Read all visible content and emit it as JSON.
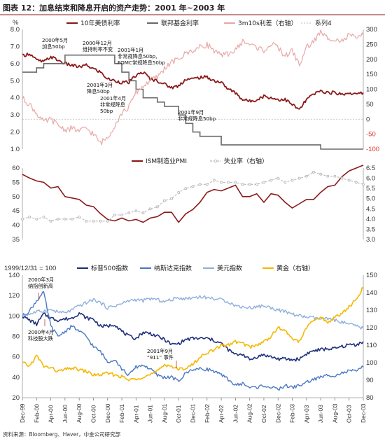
{
  "header": {
    "title": "图表 12：加息结束和降息开启的资产走势：2001 年~2003 年",
    "source": "资料来源：Bloomberg、Haver，中金公司研究部"
  },
  "colors": {
    "treasury": "#8b1a1a",
    "fedfunds": "#6b6b6b",
    "spread": "#e8a8a8",
    "pmi": "#8b1a1a",
    "unemp": "#b8b8b8",
    "sp500": "#1f2f7a",
    "nasdaq": "#4a78c4",
    "dxy": "#8fb0dc",
    "gold": "#f5b800"
  },
  "chart_data": [
    {
      "id": "rates",
      "type": "line",
      "yunit": "%",
      "ylim": [
        1.0,
        8.0
      ],
      "yticks": [
        "1.0",
        "2.0",
        "3.0",
        "4.0",
        "5.0",
        "6.0",
        "7.0",
        "8.0"
      ],
      "y2lim": [
        -100,
        300
      ],
      "y2ticks": [
        "-100",
        "-50",
        "0",
        "50",
        "100",
        "150",
        "200",
        "250",
        "300"
      ],
      "legend": [
        "10年美债利率",
        "联邦基金利率",
        "3m10s利差（右轴）",
        "系列4"
      ],
      "annotations": [
        {
          "lines": [
            "2000年5月",
            "加息50bp"
          ]
        },
        {
          "lines": [
            "2000年12月",
            "维持利率不变"
          ]
        },
        {
          "lines": [
            "2001年1月",
            "非常规降息50bp,",
            "FOMC常规降息50bp"
          ]
        },
        {
          "lines": [
            "2001年3月",
            "降息50bp"
          ]
        },
        {
          "lines": [
            "2001年4月",
            "非常规降息",
            "50bp"
          ]
        },
        {
          "lines": [
            "2001年9月",
            "非常规降息50bp"
          ]
        }
      ],
      "series": [
        {
          "name": "10年美债利率",
          "axis": "left",
          "x": [
            0,
            1,
            2,
            3,
            4,
            5,
            6,
            7,
            8,
            9,
            10,
            11,
            12,
            13,
            14,
            15,
            16,
            17,
            18,
            19,
            20,
            21,
            22,
            23,
            24,
            25,
            26,
            27,
            28,
            29,
            30,
            31,
            32,
            33,
            34,
            35,
            36,
            37,
            38,
            39,
            40,
            41,
            42,
            43,
            44,
            45,
            46,
            47,
            48
          ],
          "values": [
            6.45,
            6.6,
            6.2,
            6.1,
            6.4,
            6.2,
            6.0,
            5.9,
            5.8,
            5.9,
            5.7,
            5.5,
            5.1,
            5.0,
            4.9,
            4.9,
            5.3,
            5.5,
            5.1,
            5.0,
            4.8,
            4.6,
            4.7,
            5.1,
            5.1,
            5.2,
            5.2,
            5.0,
            4.9,
            4.5,
            4.3,
            3.9,
            3.8,
            3.9,
            4.1,
            4.0,
            3.9,
            3.9,
            3.6,
            3.3,
            3.9,
            4.2,
            4.4,
            4.3,
            4.3,
            4.2,
            4.3,
            4.2,
            4.3
          ]
        },
        {
          "name": "联邦基金利率",
          "axis": "left",
          "x": [
            0,
            2,
            3,
            5,
            6,
            12,
            13,
            14,
            15,
            16,
            17,
            19,
            20,
            21,
            22,
            23,
            24,
            25,
            26,
            27,
            28,
            42,
            48
          ],
          "values": [
            5.5,
            5.75,
            6.0,
            6.0,
            6.5,
            6.5,
            6.0,
            5.5,
            5.0,
            4.5,
            4.0,
            3.75,
            3.5,
            3.5,
            3.0,
            2.5,
            2.0,
            1.75,
            1.75,
            1.75,
            1.25,
            1.0,
            1.0
          ]
        },
        {
          "name": "3m10s利差（右轴）",
          "axis": "right",
          "x": [
            0,
            1,
            2,
            3,
            4,
            5,
            6,
            7,
            8,
            9,
            10,
            11,
            12,
            13,
            14,
            15,
            16,
            17,
            18,
            19,
            20,
            21,
            22,
            23,
            24,
            25,
            26,
            27,
            28,
            29,
            30,
            31,
            32,
            33,
            34,
            35,
            36,
            37,
            38,
            39,
            40,
            41,
            42,
            43,
            44,
            45,
            46,
            47,
            48
          ],
          "values": [
            70,
            50,
            20,
            -10,
            0,
            -20,
            -35,
            -30,
            -40,
            -30,
            -50,
            -80,
            -60,
            -20,
            20,
            40,
            90,
            110,
            130,
            140,
            170,
            190,
            200,
            220,
            230,
            240,
            250,
            230,
            210,
            220,
            230,
            260,
            250,
            240,
            230,
            250,
            240,
            210,
            230,
            180,
            240,
            260,
            290,
            270,
            270,
            260,
            280,
            270,
            280
          ]
        }
      ]
    },
    {
      "id": "macro",
      "type": "line",
      "ylim": [
        35,
        60
      ],
      "yticks": [
        "35",
        "40",
        "45",
        "50",
        "55",
        "60"
      ],
      "y2lim": [
        3.0,
        6.5
      ],
      "y2ticks": [
        "3.0",
        "3.5",
        "4.0",
        "4.5",
        "5.0",
        "5.5",
        "6.0",
        "6.5"
      ],
      "legend": [
        "ISM制造业PMI",
        "失业率（右轴）"
      ],
      "series": [
        {
          "name": "ISM制造业PMI",
          "axis": "left",
          "x": [
            0,
            1,
            2,
            3,
            4,
            5,
            6,
            7,
            8,
            9,
            10,
            11,
            12,
            13,
            14,
            15,
            16,
            17,
            18,
            19,
            20,
            21,
            22,
            23,
            24,
            25,
            26,
            27,
            28,
            29,
            30,
            31,
            32,
            33,
            34,
            35,
            36,
            37,
            38,
            39,
            40,
            41,
            42,
            43,
            44,
            45,
            46,
            47,
            48
          ],
          "values": [
            57.8,
            56.5,
            55.5,
            55.0,
            53.0,
            53.5,
            50.0,
            49.5,
            49.0,
            47.0,
            46.5,
            44.0,
            42.0,
            41.5,
            42.5,
            41.5,
            42.0,
            41.0,
            42.5,
            43.0,
            44.5,
            44.5,
            41.0,
            44.0,
            45.5,
            48.0,
            51.5,
            52.5,
            52.0,
            53.0,
            54.0,
            50.0,
            50.0,
            51.0,
            48.0,
            51.0,
            50.5,
            48.0,
            46.0,
            47.5,
            49.0,
            49.0,
            51.5,
            53.5,
            54.0,
            57.0,
            59.0,
            60.0,
            61.0
          ]
        },
        {
          "name": "失业率（右轴）",
          "axis": "right",
          "x": [
            0,
            1,
            2,
            3,
            4,
            5,
            6,
            7,
            8,
            9,
            10,
            11,
            12,
            13,
            14,
            15,
            16,
            17,
            18,
            19,
            20,
            21,
            22,
            23,
            24,
            25,
            26,
            27,
            28,
            29,
            30,
            31,
            32,
            33,
            34,
            35,
            36,
            37,
            38,
            39,
            40,
            41,
            42,
            43,
            44,
            45,
            46,
            47,
            48
          ],
          "values": [
            4.0,
            4.1,
            4.0,
            4.1,
            3.9,
            4.0,
            4.0,
            4.0,
            4.1,
            3.9,
            3.9,
            3.9,
            3.9,
            4.2,
            4.2,
            4.3,
            4.4,
            4.3,
            4.5,
            4.6,
            4.9,
            5.0,
            5.3,
            5.5,
            5.6,
            5.7,
            5.7,
            5.9,
            5.8,
            5.8,
            5.8,
            5.7,
            5.7,
            5.7,
            5.8,
            5.9,
            6.0,
            5.8,
            5.9,
            6.0,
            6.1,
            6.3,
            6.2,
            6.1,
            6.1,
            6.0,
            5.9,
            5.8,
            5.7
          ]
        }
      ]
    },
    {
      "id": "assets",
      "type": "line",
      "base_note": "1999/12/31 = 100",
      "ylim": [
        20,
        140
      ],
      "yticks": [
        "20",
        "40",
        "60",
        "80",
        "100",
        "120",
        "140"
      ],
      "y2lim": [
        80,
        150
      ],
      "y2ticks": [
        "80",
        "90",
        "100",
        "110",
        "120",
        "130",
        "140",
        "150"
      ],
      "legend": [
        "标普500指数",
        "纳斯达克指数",
        "美元指数",
        "黄金（右轴）"
      ],
      "annotations": [
        {
          "lines": [
            "2000年3月",
            "纳指创新高"
          ]
        },
        {
          "lines": [
            "2000年4月",
            "科技股大跌"
          ]
        },
        {
          "lines": [
            "2001年9月",
            "“911” 事件"
          ]
        }
      ],
      "series": [
        {
          "name": "标普500指数",
          "axis": "left",
          "x": [
            0,
            1,
            2,
            3,
            4,
            5,
            6,
            7,
            8,
            9,
            10,
            11,
            12,
            13,
            14,
            15,
            16,
            17,
            18,
            19,
            20,
            21,
            22,
            23,
            24,
            25,
            26,
            27,
            28,
            29,
            30,
            31,
            32,
            33,
            34,
            35,
            36,
            37,
            38,
            39,
            40,
            41,
            42,
            43,
            44,
            45,
            46,
            47,
            48
          ],
          "values": [
            100,
            96,
            92,
            102,
            98,
            96,
            97,
            98,
            103,
            98,
            97,
            90,
            90,
            92,
            85,
            80,
            78,
            84,
            83,
            80,
            77,
            72,
            73,
            77,
            78,
            78,
            78,
            76,
            73,
            67,
            62,
            63,
            57,
            60,
            62,
            60,
            58,
            58,
            57,
            58,
            63,
            66,
            67,
            68,
            68,
            70,
            72,
            72,
            75
          ]
        },
        {
          "name": "纳斯达克指数",
          "axis": "left",
          "x": [
            0,
            1,
            2,
            3,
            4,
            5,
            6,
            7,
            8,
            9,
            10,
            11,
            12,
            13,
            14,
            15,
            16,
            17,
            18,
            19,
            20,
            21,
            22,
            23,
            24,
            25,
            26,
            27,
            28,
            29,
            30,
            31,
            32,
            33,
            34,
            35,
            36,
            37,
            38,
            39,
            40,
            41,
            42,
            43,
            44,
            45,
            46,
            47,
            48
          ],
          "values": [
            100,
            105,
            115,
            123,
            90,
            80,
            85,
            90,
            85,
            80,
            70,
            65,
            55,
            58,
            48,
            42,
            50,
            52,
            48,
            42,
            40,
            40,
            36,
            44,
            48,
            48,
            48,
            46,
            42,
            38,
            32,
            34,
            30,
            30,
            32,
            30,
            28,
            32,
            30,
            32,
            35,
            38,
            40,
            42,
            42,
            44,
            46,
            46,
            50
          ]
        },
        {
          "name": "美元指数",
          "axis": "left",
          "x": [
            0,
            1,
            2,
            3,
            4,
            5,
            6,
            7,
            8,
            9,
            10,
            11,
            12,
            13,
            14,
            15,
            16,
            17,
            18,
            19,
            20,
            21,
            22,
            23,
            24,
            25,
            26,
            27,
            28,
            29,
            30,
            31,
            32,
            33,
            34,
            35,
            36,
            37,
            38,
            39,
            40,
            41,
            42,
            43,
            44,
            45,
            46,
            47,
            48
          ],
          "values": [
            100,
            102,
            104,
            105,
            106,
            104,
            103,
            106,
            110,
            113,
            116,
            113,
            108,
            110,
            112,
            115,
            116,
            115,
            117,
            116,
            114,
            116,
            118,
            117,
            118,
            119,
            118,
            117,
            116,
            114,
            110,
            109,
            108,
            109,
            110,
            108,
            106,
            104,
            102,
            100,
            99,
            98,
            97,
            97,
            96,
            94,
            92,
            90,
            88
          ]
        },
        {
          "name": "黄金（右轴）",
          "axis": "right",
          "x": [
            0,
            1,
            2,
            3,
            4,
            5,
            6,
            7,
            8,
            9,
            10,
            11,
            12,
            13,
            14,
            15,
            16,
            17,
            18,
            19,
            20,
            21,
            22,
            23,
            24,
            25,
            26,
            27,
            28,
            29,
            30,
            31,
            32,
            33,
            34,
            35,
            36,
            37,
            38,
            39,
            40,
            41,
            42,
            43,
            44,
            45,
            46,
            47,
            48
          ],
          "values": [
            100,
            98,
            104,
            98,
            97,
            95,
            96,
            97,
            96,
            95,
            93,
            93,
            94,
            93,
            92,
            90,
            91,
            92,
            93,
            95,
            99,
            98,
            96,
            97,
            99,
            103,
            106,
            107,
            110,
            110,
            112,
            111,
            109,
            110,
            112,
            115,
            120,
            118,
            114,
            112,
            120,
            124,
            126,
            123,
            126,
            128,
            132,
            136,
            143
          ]
        }
      ]
    }
  ],
  "xaxis": {
    "ticks": [
      "Dec-99",
      "Feb-00",
      "Apr-00",
      "Jun-00",
      "Aug-00",
      "Oct-00",
      "Dec-00",
      "Feb-01",
      "Apr-01",
      "Jun-01",
      "Aug-01",
      "Oct-01",
      "Dec-01",
      "Feb-02",
      "Apr-02",
      "Jun-02",
      "Aug-02",
      "Oct-02",
      "Dec-02",
      "Feb-03",
      "Apr-03",
      "Jun-03",
      "Aug-03",
      "Oct-03",
      "Dec-03"
    ]
  }
}
